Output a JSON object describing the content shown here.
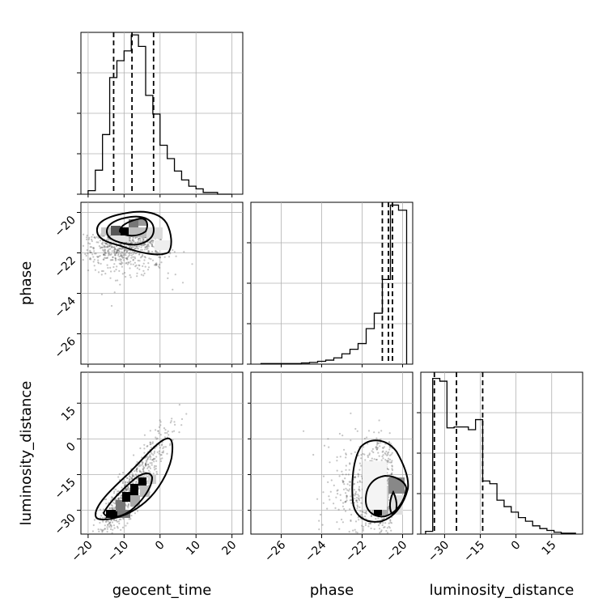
{
  "chart_data": {
    "type": "corner",
    "parameters": [
      "geocent_time",
      "phase",
      "luminosity_distance"
    ],
    "axis_labels": {
      "x": [
        "geocent_time",
        "phase",
        "luminosity_distance"
      ],
      "y": [
        "phase",
        "luminosity_distance"
      ]
    },
    "ranges": {
      "geocent_time": [
        -22,
        23
      ],
      "phase": [
        -27.5,
        -19.5
      ],
      "luminosity_distance": [
        -40,
        28
      ]
    },
    "ticks": {
      "geocent_time": [
        -20,
        -10,
        0,
        10,
        20
      ],
      "phase": [
        -26,
        -24,
        -22,
        -20
      ],
      "luminosity_distance": [
        -30,
        -15,
        0,
        15
      ]
    },
    "tick_labels": {
      "geocent_time": [
        "−20",
        "−10",
        "0",
        "10",
        "20"
      ],
      "phase": [
        "−26",
        "−24",
        "−22",
        "−20"
      ],
      "luminosity_distance": [
        "−30",
        "−15",
        "0",
        "15"
      ]
    },
    "quantiles": {
      "geocent_time": [
        -12.9,
        -7.8,
        -1.8
      ],
      "phase": [
        -21.0,
        -20.7,
        -20.5
      ],
      "luminosity_distance": [
        -34.3,
        -25.0,
        -14.0
      ]
    },
    "histograms": {
      "geocent_time": {
        "edges": [
          -20,
          -18,
          -16,
          -14,
          -12,
          -10,
          -8,
          -6,
          -4,
          -2,
          0,
          2,
          4,
          6,
          8,
          10,
          12,
          14,
          16,
          18,
          20
        ],
        "counts": [
          4,
          27,
          67,
          131,
          150,
          161,
          179,
          166,
          111,
          90,
          55,
          40,
          26,
          16,
          9,
          6,
          2,
          2,
          0,
          0
        ]
      },
      "phase": {
        "edges": [
          -27,
          -26.6,
          -26.2,
          -25.8,
          -25.4,
          -25,
          -24.6,
          -24.2,
          -23.8,
          -23.4,
          -23,
          -22.6,
          -22.2,
          -21.8,
          -21.4,
          -21,
          -20.6,
          -20.2,
          -19.8
        ],
        "counts": [
          1,
          1,
          1,
          1,
          1,
          2,
          3,
          5,
          7,
          11,
          18,
          26,
          36,
          62,
          89,
          148,
          278,
          269
        ]
      },
      "luminosity_distance": {
        "edges": [
          -38,
          -35,
          -32,
          -29,
          -26,
          -23,
          -20,
          -17,
          -14,
          -11,
          -8,
          -5,
          -2,
          1,
          4,
          7,
          10,
          13,
          16,
          19,
          22,
          25
        ],
        "counts": [
          3,
          170,
          167,
          116,
          117,
          117,
          114,
          125,
          58,
          55,
          37,
          30,
          24,
          18,
          14,
          9,
          6,
          4,
          2,
          1,
          1
        ]
      }
    },
    "hist_y_max": {
      "geocent_time": 180,
      "phase": 280,
      "luminosity_distance": 175
    },
    "grid": true,
    "color": "#000000"
  }
}
